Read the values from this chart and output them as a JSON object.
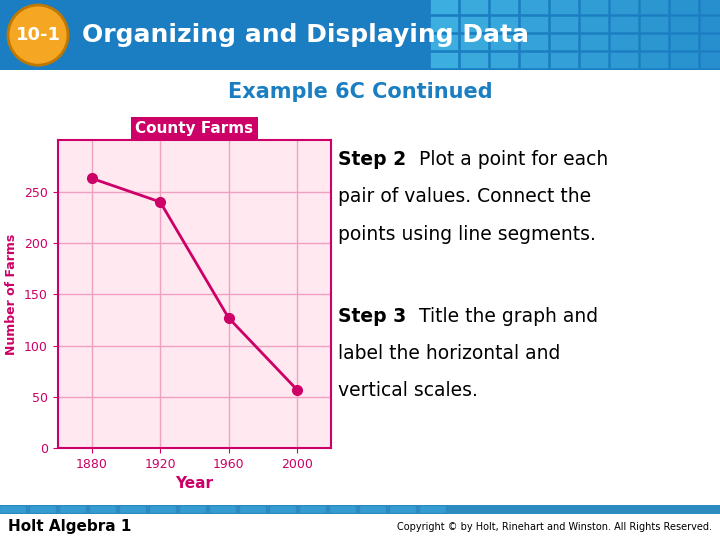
{
  "slide_title": "Organizing and Displaying Data",
  "slide_title_prefix": "10-1",
  "example_title": "Example 6C Continued",
  "chart_title": "County Farms",
  "xlabel": "Year",
  "ylabel": "Number of Farms",
  "x_values": [
    1880,
    1920,
    1960,
    2000
  ],
  "y_values": [
    263,
    240,
    127,
    57
  ],
  "ylim": [
    0,
    300
  ],
  "yticks": [
    0,
    50,
    100,
    150,
    200,
    250
  ],
  "xticks": [
    1880,
    1920,
    1960,
    2000
  ],
  "line_color": "#CC0066",
  "marker_color": "#CC0066",
  "grid_color": "#F0A0C0",
  "chart_bg": "#FFE8F0",
  "chart_border_color": "#CC0066",
  "chart_title_color": "#CC0066",
  "axis_label_color": "#CC0066",
  "tick_label_color": "#CC0066",
  "step2_bold": "Step 2",
  "step2_rest": " Plot a point for each\npair of values. Connect the\npoints using line segments.",
  "step3_bold": "Step 3",
  "step3_rest": " Title the graph and\nlabel the horizontal and\nvertical scales.",
  "header_color": "#1B7EC2",
  "header_grid_color": "#3DAEE0",
  "badge_color": "#F5A623",
  "badge_text": "10-1",
  "header_title": "Organizing and Displaying Data",
  "footer_text": "Holt Algebra 1",
  "copyright_text": "Copyright © by Holt, Rinehart and Winston. All Rights Reserved.",
  "footer_bar_color": "#2E8BBF",
  "slide_bg": "#FFFFFF",
  "header_text_color": "#FFFFFF",
  "example_title_color": "#1B7EC2"
}
